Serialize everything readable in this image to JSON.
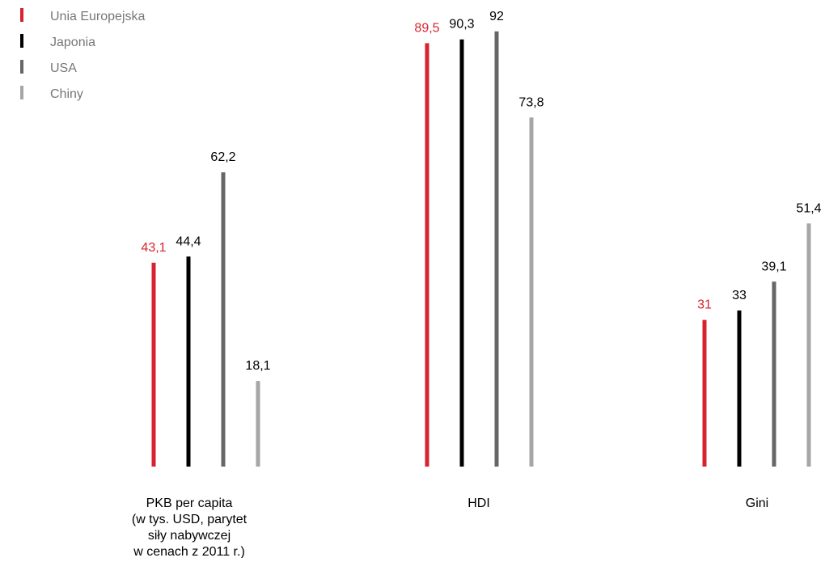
{
  "chart_data": {
    "type": "bar",
    "categories": [
      {
        "label": "PKB per capita",
        "sublabel": [
          "(w tys. USD, parytet",
          "siły nabywczej",
          "w cenach z 2011 r.)"
        ],
        "values": [
          43.1,
          44.4,
          62.2,
          18.1
        ],
        "display": [
          "43,1",
          "44,4",
          "62,2",
          "18,1"
        ],
        "ylim": [
          0,
          100
        ]
      },
      {
        "label": "HDI",
        "sublabel": [],
        "values": [
          89.5,
          90.3,
          92,
          73.8
        ],
        "display": [
          "89,5",
          "90,3",
          "92",
          "73,8"
        ],
        "ylim": [
          0,
          100
        ]
      },
      {
        "label": "Gini",
        "sublabel": [],
        "values": [
          31,
          33,
          39.1,
          51.4
        ],
        "display": [
          "31",
          "33",
          "39,1",
          "51,4"
        ],
        "ylim": [
          0,
          100
        ]
      }
    ],
    "series": [
      {
        "name": "Unia Europejska",
        "color": "#d7232f",
        "label_color": "#d7232f"
      },
      {
        "name": "Japonia",
        "color": "#000000",
        "label_color": "#000000"
      },
      {
        "name": "USA",
        "color": "#666666",
        "label_color": "#000000"
      },
      {
        "name": "Chiny",
        "color": "#a6a6a6",
        "label_color": "#000000"
      }
    ],
    "legend": "top-left",
    "grid": false,
    "title": "",
    "xlabel": "",
    "ylabel": ""
  }
}
